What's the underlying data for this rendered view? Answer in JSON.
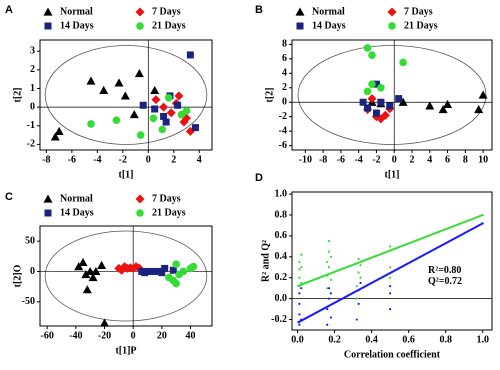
{
  "chart_data": [
    {
      "type": "scatter",
      "panel": "A",
      "xlabel": "t[1]",
      "ylabel": "t[2]",
      "xlim": [
        -8.5,
        5
      ],
      "xticks": [
        -8,
        -6,
        -4,
        -2,
        0,
        2,
        4
      ],
      "ylim": [
        -2.3,
        3.6
      ],
      "yticks": [
        -2,
        -1,
        0,
        1,
        2,
        3
      ],
      "series": [
        {
          "name": "Normal",
          "color": "#000000",
          "marker": "triangle",
          "x": [
            -7.3,
            -7,
            -4.5,
            -3.5,
            -2.3,
            -1.8,
            -0.7,
            -1.1,
            0.5
          ],
          "values": [
            -1.6,
            -1.3,
            1.4,
            0.9,
            1.3,
            0.6,
            1.8,
            -0.4,
            0.9
          ]
        },
        {
          "name": "7 Days",
          "color": "#ee1111",
          "marker": "diamond",
          "x": [
            0.6,
            1.2,
            1.8,
            2.4,
            2.8,
            3.3,
            2.2,
            3
          ],
          "values": [
            0.4,
            0,
            -0.3,
            0.6,
            -0.8,
            -1.3,
            0.2,
            -0.6
          ]
        },
        {
          "name": "14 Days",
          "color": "#1a237e",
          "marker": "square",
          "x": [
            3.3,
            -0.4,
            0.5,
            1.4,
            2.3,
            1.7,
            3.7,
            1.2
          ],
          "values": [
            2.8,
            0.1,
            -0.1,
            -0.8,
            0.1,
            0.6,
            -1.1,
            -0.5
          ]
        },
        {
          "name": "21 Days",
          "color": "#33dd33",
          "marker": "circle",
          "x": [
            -4.5,
            -2.5,
            0.4,
            1.1,
            1.6,
            2.6,
            3,
            -0.6
          ],
          "values": [
            -0.9,
            -0.7,
            -0.6,
            -1.2,
            0.5,
            -0.4,
            -0.2,
            -1.5
          ]
        }
      ]
    },
    {
      "type": "scatter",
      "panel": "B",
      "xlabel": "t[1]",
      "ylabel": "t[2]",
      "xlim": [
        -11.5,
        11
      ],
      "xticks": [
        -10,
        -8,
        -6,
        -4,
        -2,
        0,
        2,
        4,
        6,
        8,
        10
      ],
      "ylim": [
        -6.6,
        8.6
      ],
      "yticks": [
        -6,
        -4,
        -2,
        0,
        2,
        4,
        6,
        8
      ],
      "series": [
        {
          "name": "Normal",
          "color": "#000000",
          "marker": "triangle",
          "x": [
            1,
            4,
            5.5,
            6,
            9.5,
            10,
            -1.5,
            -2.5
          ],
          "values": [
            0,
            -0.5,
            -1,
            -0.3,
            -1,
            1,
            -0.2,
            0
          ]
        },
        {
          "name": "7 Days",
          "color": "#ee1111",
          "marker": "diamond",
          "x": [
            -2,
            -1.5,
            -3,
            -0.5,
            -2.5,
            -1
          ],
          "values": [
            -2,
            -2.3,
            -1,
            -0.9,
            0.5,
            -1.8
          ]
        },
        {
          "name": "14 Days",
          "color": "#1a237e",
          "marker": "square",
          "x": [
            -2,
            -3.5,
            -3,
            -1.5,
            -0.5,
            -2,
            0.5
          ],
          "values": [
            2.5,
            0,
            -0.8,
            0,
            -0.5,
            -1.5,
            0.5
          ]
        },
        {
          "name": "21 Days",
          "color": "#33dd33",
          "marker": "circle",
          "x": [
            -3,
            -2.5,
            1,
            -2.5,
            -3,
            -1.5
          ],
          "values": [
            7.5,
            6.5,
            5.5,
            2.5,
            1.5,
            2
          ]
        }
      ]
    },
    {
      "type": "scatter",
      "panel": "C",
      "xlabel": "t[1]P",
      "ylabel": "t[2]O",
      "xlim": [
        -65,
        55
      ],
      "xticks": [
        -60,
        -40,
        -20,
        0,
        20,
        40
      ],
      "ylim": [
        -90,
        75
      ],
      "yticks": [
        -50,
        0,
        50
      ],
      "series": [
        {
          "name": "Normal",
          "color": "#000000",
          "marker": "triangle",
          "x": [
            -35,
            -33,
            -28,
            -30,
            -26,
            -22,
            -32,
            -20,
            -38
          ],
          "values": [
            15,
            -5,
            -10,
            0,
            0,
            10,
            -30,
            -85,
            8
          ]
        },
        {
          "name": "7 Days",
          "color": "#ee1111",
          "marker": "diamond",
          "x": [
            -10,
            -6,
            -4,
            -2,
            0,
            2,
            -8,
            4
          ],
          "values": [
            5,
            8,
            5,
            6,
            5,
            8,
            2,
            6
          ]
        },
        {
          "name": "14 Days",
          "color": "#1a237e",
          "marker": "square",
          "x": [
            6,
            10,
            14,
            18,
            20,
            22,
            28,
            8
          ],
          "values": [
            0,
            0,
            0,
            0,
            -2,
            5,
            2,
            -2
          ]
        },
        {
          "name": "21 Days",
          "color": "#33dd33",
          "marker": "circle",
          "x": [
            25,
            28,
            30,
            32,
            35,
            40,
            42,
            30
          ],
          "values": [
            -10,
            -15,
            -20,
            -5,
            0,
            5,
            8,
            12
          ]
        }
      ]
    },
    {
      "type": "scatter",
      "panel": "D",
      "xlabel": "Correlation coefficient",
      "ylabel": "R² and Q²",
      "xlim": [
        -0.03,
        1.05
      ],
      "xticks": [
        {
          "value": 0,
          "label": "0.0"
        },
        {
          "value": 0.2,
          "label": "0.2"
        },
        {
          "value": 0.4,
          "label": "0.4"
        },
        {
          "value": 0.6,
          "label": "0.6"
        },
        {
          "value": 0.8,
          "label": "0.8"
        },
        {
          "value": 1,
          "label": "1.0"
        }
      ],
      "ylim": [
        -0.3,
        1.02
      ],
      "yticks": [
        {
          "value": -0.2,
          "label": "-0.2"
        },
        {
          "value": 0,
          "label": "0.0"
        },
        {
          "value": 0.2,
          "label": "0.2"
        },
        {
          "value": 0.4,
          "label": "0.4"
        },
        {
          "value": 0.6,
          "label": "0.6"
        },
        {
          "value": 0.8,
          "label": "0.8"
        },
        {
          "value": 1,
          "label": "1.0"
        }
      ],
      "annotations": [
        "R²=0.80",
        "Q²=0.72"
      ],
      "series": [
        {
          "color": "#33dd33",
          "marker": "dot",
          "x": [
            0.01,
            0.01,
            0.01,
            0.01,
            0.01,
            0.02,
            0.02,
            0.02,
            0.16,
            0.16,
            0.16,
            0.17,
            0.17,
            0.17,
            0.18,
            0.18,
            0.32,
            0.32,
            0.33,
            0.33,
            0.34,
            0.34,
            0.5,
            0.5,
            0.5,
            1
          ],
          "values": [
            0.05,
            0.12,
            0.2,
            0.28,
            0.35,
            0.42,
            0.15,
            0.3,
            0.1,
            0.22,
            0.35,
            0.45,
            0.55,
            0.3,
            0.18,
            0.4,
            0,
            0.12,
            0.25,
            0.38,
            0.2,
            0.32,
            0.2,
            0.3,
            0.5,
            0.8
          ]
        },
        {
          "color": "#1a1aff",
          "marker": "dot",
          "x": [
            0.01,
            0.01,
            0.01,
            0.01,
            0.02,
            0.02,
            0.16,
            0.16,
            0.17,
            0.17,
            0.18,
            0.18,
            0.32,
            0.33,
            0.33,
            0.34,
            0.5,
            0.5,
            0.5,
            1
          ],
          "values": [
            -0.25,
            -0.15,
            -0.05,
            0.05,
            -0.2,
            0.1,
            -0.25,
            -0.1,
            0,
            0.1,
            -0.18,
            0.05,
            -0.2,
            -0.05,
            0.08,
            0.15,
            -0.1,
            0.05,
            0.12,
            0.72
          ]
        }
      ],
      "fits": [
        {
          "color": "#33dd33",
          "x": [
            0,
            1
          ],
          "values": [
            0.12,
            0.8
          ]
        },
        {
          "color": "#1a1aff",
          "x": [
            0,
            1
          ],
          "values": [
            -0.23,
            0.72
          ]
        }
      ]
    }
  ]
}
